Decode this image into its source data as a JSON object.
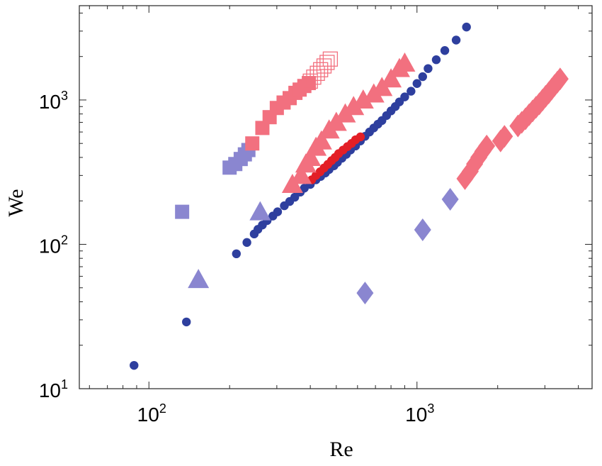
{
  "chart_data": {
    "type": "scatter",
    "title": "",
    "xlabel": "Re",
    "ylabel": "We",
    "xscale": "log",
    "yscale": "log",
    "xlim": [
      55,
      4500
    ],
    "ylim": [
      10,
      4500
    ],
    "grid": false,
    "x_tick_labels": [
      {
        "value": 100,
        "base": "10",
        "exp": "2"
      },
      {
        "value": 1000,
        "base": "10",
        "exp": "3"
      }
    ],
    "y_tick_labels": [
      {
        "value": 10,
        "base": "10",
        "exp": "1"
      },
      {
        "value": 100,
        "base": "10",
        "exp": "2"
      },
      {
        "value": 1000,
        "base": "10",
        "exp": "3"
      }
    ],
    "series": [
      {
        "marker": "circle",
        "filled": true,
        "color": "#2e3f9e",
        "points": [
          [
            88,
            14.5
          ],
          [
            138,
            29
          ],
          [
            212,
            86
          ],
          [
            232,
            103
          ],
          [
            247,
            118
          ],
          [
            255,
            127
          ],
          [
            265,
            136
          ],
          [
            276,
            146
          ],
          [
            290,
            157
          ],
          [
            302,
            168
          ],
          [
            320,
            185
          ],
          [
            335,
            198
          ],
          [
            350,
            212
          ],
          [
            367,
            230
          ],
          [
            380,
            245
          ],
          [
            400,
            260
          ],
          [
            420,
            280
          ],
          [
            437,
            295
          ],
          [
            455,
            312
          ],
          [
            470,
            330
          ],
          [
            490,
            350
          ],
          [
            505,
            370
          ],
          [
            525,
            395
          ],
          [
            545,
            420
          ],
          [
            565,
            450
          ],
          [
            590,
            480
          ],
          [
            615,
            520
          ],
          [
            640,
            560
          ],
          [
            665,
            600
          ],
          [
            690,
            640
          ],
          [
            715,
            680
          ],
          [
            740,
            720
          ],
          [
            770,
            780
          ],
          [
            800,
            840
          ],
          [
            830,
            900
          ],
          [
            860,
            970
          ],
          [
            900,
            1050
          ],
          [
            950,
            1150
          ],
          [
            1000,
            1300
          ],
          [
            1050,
            1450
          ],
          [
            1100,
            1650
          ],
          [
            1180,
            1900
          ],
          [
            1270,
            2200
          ],
          [
            1400,
            2600
          ],
          [
            1530,
            3200
          ]
        ]
      },
      {
        "marker": "circle",
        "filled": true,
        "color": "#e31f26",
        "points": [
          [
            405,
            280
          ],
          [
            420,
            300
          ],
          [
            435,
            318
          ],
          [
            450,
            338
          ],
          [
            465,
            358
          ],
          [
            480,
            380
          ],
          [
            495,
            400
          ],
          [
            510,
            425
          ],
          [
            530,
            450
          ],
          [
            550,
            475
          ],
          [
            570,
            500
          ],
          [
            590,
            530
          ],
          [
            615,
            555
          ]
        ]
      },
      {
        "marker": "square",
        "filled": true,
        "color": "#8a86d0",
        "points": [
          [
            133,
            168
          ],
          [
            200,
            340
          ],
          [
            210,
            360
          ],
          [
            220,
            390
          ],
          [
            228,
            420
          ],
          [
            235,
            450
          ]
        ]
      },
      {
        "marker": "square",
        "filled": true,
        "color": "#f2707f",
        "points": [
          [
            243,
            500
          ],
          [
            265,
            640
          ],
          [
            282,
            760
          ],
          [
            300,
            880
          ],
          [
            318,
            960
          ],
          [
            335,
            1030
          ],
          [
            352,
            1120
          ],
          [
            365,
            1180
          ],
          [
            380,
            1250
          ],
          [
            395,
            1310
          ]
        ]
      },
      {
        "marker": "square",
        "filled": false,
        "color": "#f2707f",
        "points": [
          [
            400,
            1350
          ],
          [
            412,
            1440
          ],
          [
            425,
            1530
          ],
          [
            437,
            1620
          ],
          [
            450,
            1720
          ],
          [
            462,
            1820
          ],
          [
            475,
            1920
          ]
        ]
      },
      {
        "marker": "triangle",
        "filled": true,
        "color": "#8a86d0",
        "points": [
          [
            153,
            57
          ],
          [
            260,
            168
          ]
        ]
      },
      {
        "marker": "triangle",
        "filled": true,
        "color": "#f2707f",
        "points": [
          [
            343,
            260
          ],
          [
            370,
            300
          ],
          [
            385,
            360
          ],
          [
            400,
            400
          ],
          [
            420,
            470
          ],
          [
            440,
            520
          ],
          [
            470,
            620
          ],
          [
            500,
            700
          ],
          [
            540,
            800
          ],
          [
            580,
            900
          ],
          [
            630,
            1000
          ],
          [
            690,
            1100
          ],
          [
            740,
            1220
          ],
          [
            800,
            1400
          ],
          [
            860,
            1650
          ],
          [
            900,
            1800
          ]
        ]
      },
      {
        "marker": "diamond",
        "filled": true,
        "color": "#8a86d0",
        "points": [
          [
            640,
            46
          ],
          [
            1050,
            126
          ],
          [
            1330,
            205
          ]
        ]
      },
      {
        "marker": "diamond",
        "filled": true,
        "color": "#f2707f",
        "points": [
          [
            1510,
            285
          ],
          [
            1580,
            320
          ],
          [
            1640,
            360
          ],
          [
            1700,
            400
          ],
          [
            1760,
            440
          ],
          [
            1820,
            480
          ],
          [
            2050,
            520
          ],
          [
            2120,
            560
          ],
          [
            2380,
            660
          ],
          [
            2460,
            700
          ],
          [
            2540,
            740
          ],
          [
            2620,
            790
          ],
          [
            2700,
            840
          ],
          [
            2780,
            890
          ],
          [
            2860,
            940
          ],
          [
            2940,
            1000
          ],
          [
            3020,
            1060
          ],
          [
            3100,
            1120
          ],
          [
            3180,
            1190
          ],
          [
            3260,
            1260
          ],
          [
            3340,
            1330
          ],
          [
            3420,
            1400
          ]
        ]
      }
    ]
  }
}
